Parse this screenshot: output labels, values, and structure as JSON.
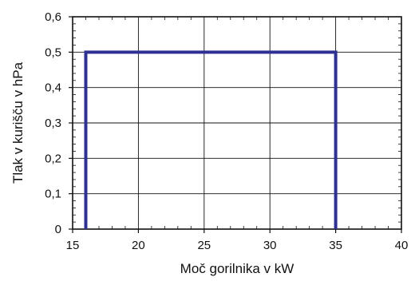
{
  "chart_data": {
    "type": "line",
    "title": "",
    "xlabel": "Moč gorilnika v kW",
    "ylabel": "Tlak v kurišču v hPa",
    "xlim": [
      15,
      40
    ],
    "ylim": [
      0,
      0.6
    ],
    "x_ticks": [
      "15",
      "20",
      "25",
      "30",
      "35",
      "40"
    ],
    "y_ticks": [
      "0",
      "0,1",
      "0,2",
      "0,3",
      "0,4",
      "0,5",
      "0,6"
    ],
    "grid": true,
    "series": [
      {
        "x": [
          16,
          16,
          35,
          35
        ],
        "y": [
          0,
          0.5,
          0.5,
          0
        ],
        "color": "#2e3192"
      }
    ]
  }
}
